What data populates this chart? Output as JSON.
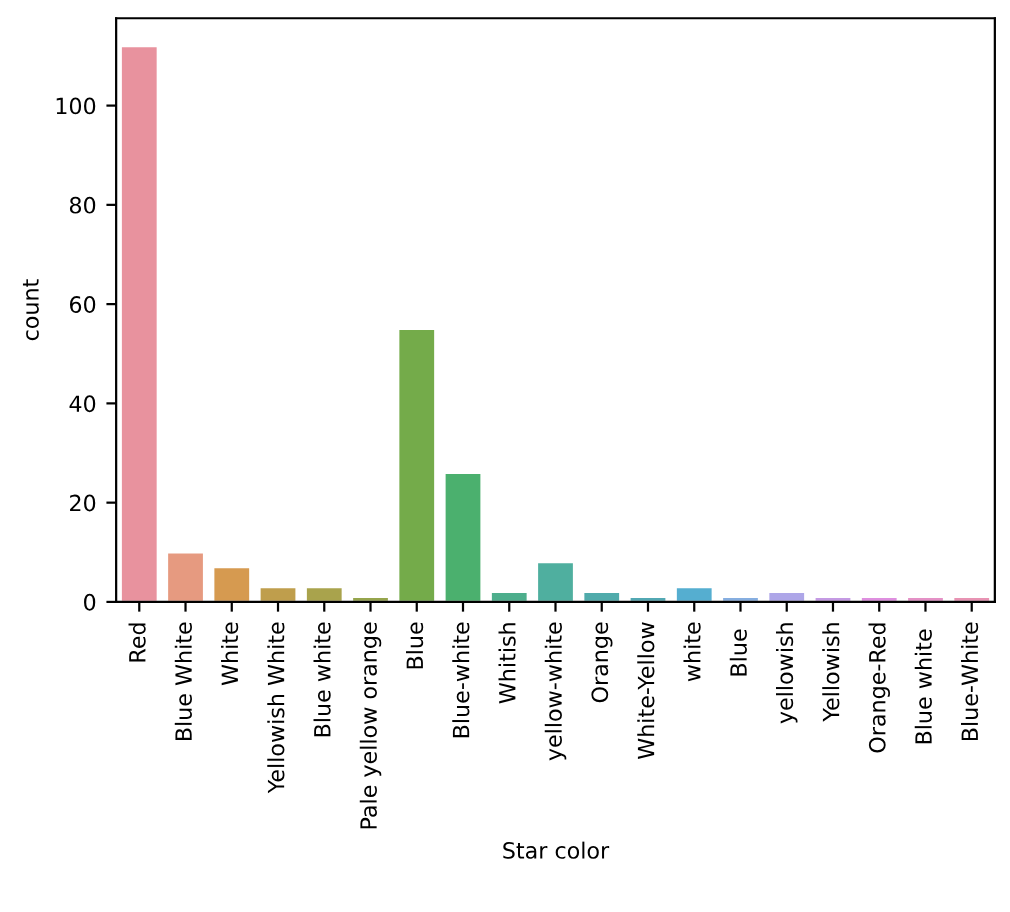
{
  "chart_data": {
    "type": "bar",
    "xlabel": "Star color",
    "ylabel": "count",
    "categories": [
      "Red",
      "Blue White",
      "White",
      "Yellowish White",
      "Blue white",
      "Pale yellow orange",
      "Blue",
      "Blue-white",
      "Whitish",
      "yellow-white",
      "Orange",
      "White-Yellow",
      "white",
      "Blue ",
      "yellowish",
      "Yellowish",
      "Orange-Red",
      "Blue white ",
      "Blue-White"
    ],
    "values": [
      112,
      10,
      7,
      3,
      3,
      1,
      55,
      26,
      2,
      8,
      2,
      1,
      3,
      1,
      2,
      1,
      1,
      1,
      1
    ],
    "colors": [
      "#e8929e",
      "#e69a80",
      "#d69a50",
      "#bf9e4c",
      "#a9a34c",
      "#96a54c",
      "#74ab4a",
      "#4bb06e",
      "#4dae8c",
      "#4faf9f",
      "#50abab",
      "#52a8b3",
      "#55aed0",
      "#86aee0",
      "#aea6e8",
      "#c49ae3",
      "#de8fdf",
      "#e491c6",
      "#e893b3"
    ],
    "ylim": [
      0,
      117.6
    ],
    "yticks": [
      0,
      20,
      40,
      60,
      80,
      100
    ],
    "grid": false
  }
}
